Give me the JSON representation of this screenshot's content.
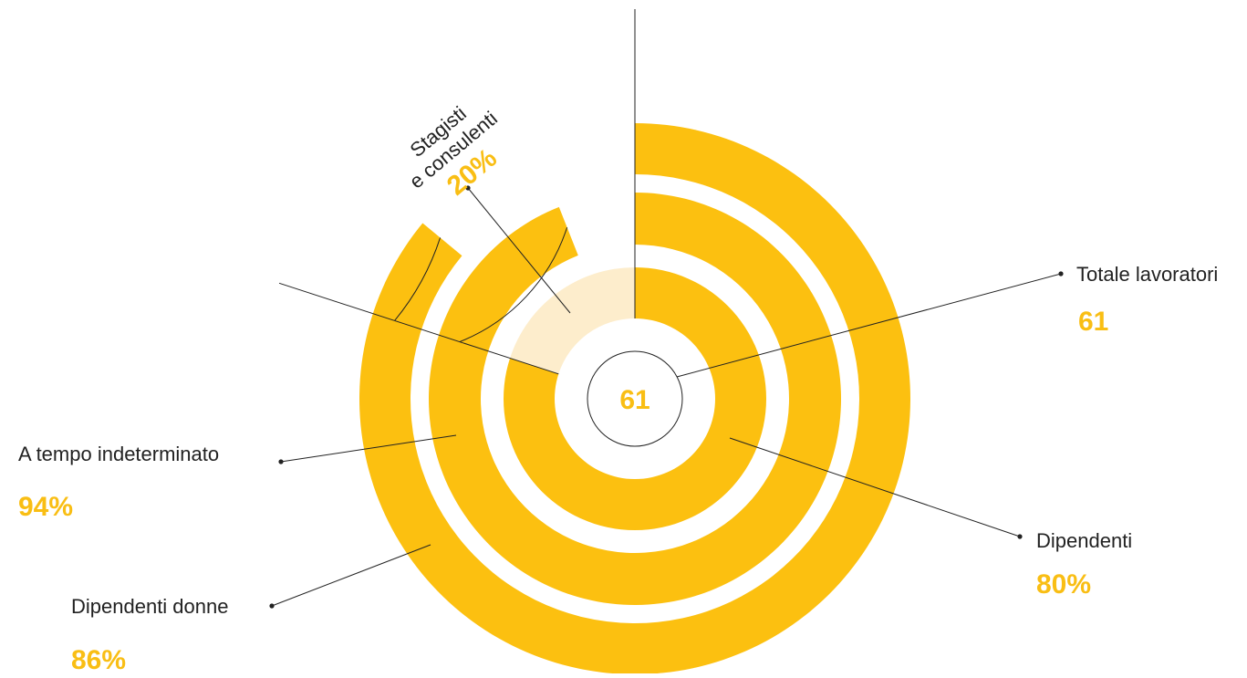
{
  "colors": {
    "accent": "#fcc010",
    "accent_light": "#fdedcc",
    "value_text": "#f9be14",
    "line": "#222222"
  },
  "chart_data": {
    "type": "radial-bar",
    "title": "",
    "center_value": "61",
    "series": [
      {
        "name": "Totale lavoratori",
        "value_label": "61",
        "percent": 100
      },
      {
        "name": "Dipendenti",
        "value_label": "80%",
        "percent": 80
      },
      {
        "name": "Stagisti e consulenti",
        "value_label": "20%",
        "percent": 20
      },
      {
        "name": "A tempo indeterminato",
        "value_label": "94%",
        "percent": 94
      },
      {
        "name": "Dipendenti donne",
        "value_label": "86%",
        "percent": 86
      }
    ]
  },
  "labels": {
    "totale": {
      "name": "Totale lavoratori",
      "value": "61"
    },
    "dipendenti": {
      "name": "Dipendenti",
      "value": "80%"
    },
    "stagisti": {
      "line1": "Stagisti",
      "line2": "e consulenti",
      "value": "20%"
    },
    "indeterminato": {
      "name": "A tempo indeterminato",
      "value": "94%"
    },
    "donne": {
      "name": "Dipendenti donne",
      "value": "86%"
    }
  }
}
